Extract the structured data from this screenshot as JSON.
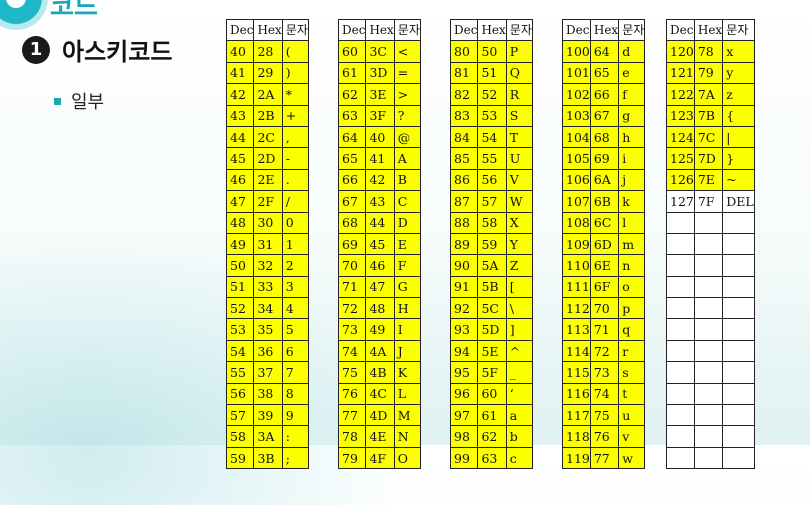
{
  "title": "코드",
  "heading": {
    "number": "1",
    "text": "아스키코드"
  },
  "bullet": "일부",
  "headers": [
    "Dec",
    "Hex",
    "문자"
  ],
  "highlight_color": "#fcff00",
  "tables": [
    {
      "rows": [
        [
          "40",
          "28",
          "("
        ],
        [
          "41",
          "29",
          ")"
        ],
        [
          "42",
          "2A",
          "*"
        ],
        [
          "43",
          "2B",
          "+"
        ],
        [
          "44",
          "2C",
          ","
        ],
        [
          "45",
          "2D",
          "-"
        ],
        [
          "46",
          "2E",
          "."
        ],
        [
          "47",
          "2F",
          "/"
        ],
        [
          "48",
          "30",
          "0"
        ],
        [
          "49",
          "31",
          "1"
        ],
        [
          "50",
          "32",
          "2"
        ],
        [
          "51",
          "33",
          "3"
        ],
        [
          "52",
          "34",
          "4"
        ],
        [
          "53",
          "35",
          "5"
        ],
        [
          "54",
          "36",
          "6"
        ],
        [
          "55",
          "37",
          "7"
        ],
        [
          "56",
          "38",
          "8"
        ],
        [
          "57",
          "39",
          "9"
        ],
        [
          "58",
          "3A",
          ":"
        ],
        [
          "59",
          "3B",
          ";"
        ]
      ]
    },
    {
      "rows": [
        [
          "60",
          "3C",
          "<"
        ],
        [
          "61",
          "3D",
          "="
        ],
        [
          "62",
          "3E",
          ">"
        ],
        [
          "63",
          "3F",
          "?"
        ],
        [
          "64",
          "40",
          "@"
        ],
        [
          "65",
          "41",
          "A"
        ],
        [
          "66",
          "42",
          "B"
        ],
        [
          "67",
          "43",
          "C"
        ],
        [
          "68",
          "44",
          "D"
        ],
        [
          "69",
          "45",
          "E"
        ],
        [
          "70",
          "46",
          "F"
        ],
        [
          "71",
          "47",
          "G"
        ],
        [
          "72",
          "48",
          "H"
        ],
        [
          "73",
          "49",
          "I"
        ],
        [
          "74",
          "4A",
          "J"
        ],
        [
          "75",
          "4B",
          "K"
        ],
        [
          "76",
          "4C",
          "L"
        ],
        [
          "77",
          "4D",
          "M"
        ],
        [
          "78",
          "4E",
          "N"
        ],
        [
          "79",
          "4F",
          "O"
        ]
      ]
    },
    {
      "rows": [
        [
          "80",
          "50",
          "P"
        ],
        [
          "81",
          "51",
          "Q"
        ],
        [
          "82",
          "52",
          "R"
        ],
        [
          "83",
          "53",
          "S"
        ],
        [
          "84",
          "54",
          "T"
        ],
        [
          "85",
          "55",
          "U"
        ],
        [
          "86",
          "56",
          "V"
        ],
        [
          "87",
          "57",
          "W"
        ],
        [
          "88",
          "58",
          "X"
        ],
        [
          "89",
          "59",
          "Y"
        ],
        [
          "90",
          "5A",
          "Z"
        ],
        [
          "91",
          "5B",
          "["
        ],
        [
          "92",
          "5C",
          "\\"
        ],
        [
          "93",
          "5D",
          "]"
        ],
        [
          "94",
          "5E",
          "^"
        ],
        [
          "95",
          "5F",
          "_"
        ],
        [
          "96",
          "60",
          "‘"
        ],
        [
          "97",
          "61",
          "a"
        ],
        [
          "98",
          "62",
          "b"
        ],
        [
          "99",
          "63",
          "c"
        ]
      ]
    },
    {
      "rows": [
        [
          "100",
          "64",
          "d"
        ],
        [
          "101",
          "65",
          "e"
        ],
        [
          "102",
          "66",
          "f"
        ],
        [
          "103",
          "67",
          "g"
        ],
        [
          "104",
          "68",
          "h"
        ],
        [
          "105",
          "69",
          "i"
        ],
        [
          "106",
          "6A",
          "j"
        ],
        [
          "107",
          "6B",
          "k"
        ],
        [
          "108",
          "6C",
          "l"
        ],
        [
          "109",
          "6D",
          "m"
        ],
        [
          "110",
          "6E",
          "n"
        ],
        [
          "111",
          "6F",
          "o"
        ],
        [
          "112",
          "70",
          "p"
        ],
        [
          "113",
          "71",
          "q"
        ],
        [
          "114",
          "72",
          "r"
        ],
        [
          "115",
          "73",
          "s"
        ],
        [
          "116",
          "74",
          "t"
        ],
        [
          "117",
          "75",
          "u"
        ],
        [
          "118",
          "76",
          "v"
        ],
        [
          "119",
          "77",
          "w"
        ]
      ]
    },
    {
      "rows": [
        [
          "120",
          "78",
          "x"
        ],
        [
          "121",
          "79",
          "y"
        ],
        [
          "122",
          "7A",
          "z"
        ],
        [
          "123",
          "7B",
          "{"
        ],
        [
          "124",
          "7C",
          "|"
        ],
        [
          "125",
          "7D",
          "}"
        ],
        [
          "126",
          "7E",
          "~"
        ],
        [
          "127",
          "7F",
          "DEL"
        ],
        [
          "",
          "",
          ""
        ],
        [
          "",
          "",
          ""
        ],
        [
          "",
          "",
          ""
        ],
        [
          "",
          "",
          ""
        ],
        [
          "",
          "",
          ""
        ],
        [
          "",
          "",
          ""
        ],
        [
          "",
          "",
          ""
        ],
        [
          "",
          "",
          ""
        ],
        [
          "",
          "",
          ""
        ],
        [
          "",
          "",
          ""
        ],
        [
          "",
          "",
          ""
        ],
        [
          "",
          "",
          ""
        ]
      ]
    }
  ]
}
